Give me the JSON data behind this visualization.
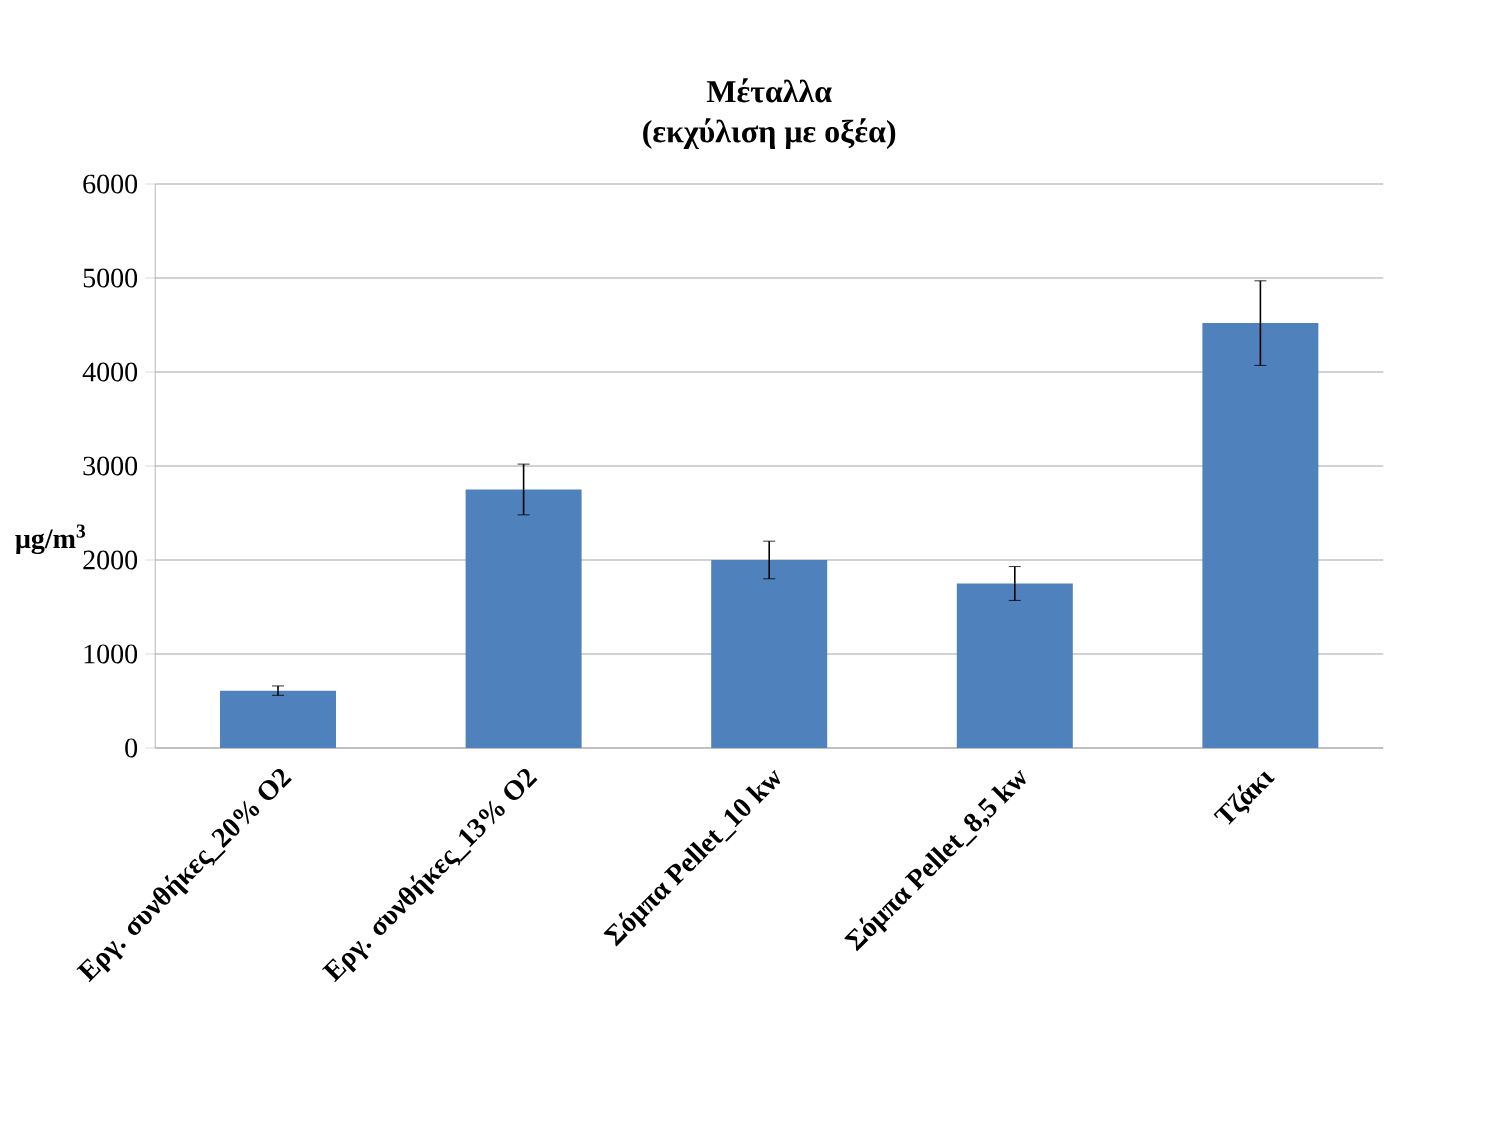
{
  "chart_data": {
    "type": "bar",
    "title": "Μέταλλα\n(εκχύλιση με οξέα)",
    "ylabel": "μg/m$^{3}$",
    "categories": [
      "Εργ. συνθήκες_20% O2",
      "Εργ. συνθήκες_13% O2",
      "Σόμπα Pellet_10 kw",
      "Σόμπα Pellet_8,5 kw",
      "Τζάκι"
    ],
    "values": [
      610,
      2750,
      2000,
      1750,
      4520
    ],
    "errors": [
      50,
      270,
      200,
      180,
      450
    ],
    "color": "#4f81bd",
    "ylim": [
      0,
      6000
    ],
    "yticks": [
      0,
      1000,
      2000,
      3000,
      4000,
      5000,
      6000
    ],
    "grid": "y"
  }
}
